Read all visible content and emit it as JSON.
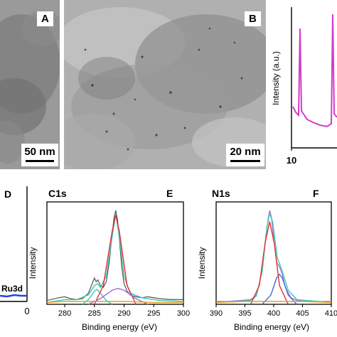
{
  "panel_a": {
    "label": "A",
    "scale_text": "50 nm"
  },
  "panel_b": {
    "label": "B",
    "scale_text": "20 nm"
  },
  "panel_c_partial": {
    "ylabel": "Intensity (a.u.)",
    "xtick_first": "10"
  },
  "panel_d_partial": {
    "label": "D",
    "annotation": "Ru3d",
    "xtick_last": "0"
  },
  "colors": {
    "tem_background": "#9a9a9a",
    "magenta_trace": "#d23cc8",
    "teal_fit": "#3cc8b4",
    "red_peak": "#e03030",
    "violet_peak": "#9b6ad8",
    "blue_trace": "#2244dd"
  },
  "chart_data": [
    {
      "type": "line",
      "panel": "E",
      "title": "C1s",
      "xlabel": "Binding energy (eV)",
      "ylabel": "Intensity",
      "xlim": [
        277,
        300
      ],
      "xticks": [
        "280",
        "285",
        "290",
        "295",
        "300"
      ],
      "series": [
        {
          "x": [
            277,
            279,
            280,
            281,
            282,
            283,
            284,
            284.5,
            285,
            285.3,
            285.6,
            286,
            286.5,
            287,
            287.5,
            288,
            288.3,
            288.6,
            288.9,
            289.2,
            289.6,
            290,
            290.5,
            291,
            292,
            293,
            294,
            296,
            298,
            300
          ],
          "values": [
            0.04,
            0.07,
            0.08,
            0.06,
            0.05,
            0.06,
            0.12,
            0.2,
            0.28,
            0.24,
            0.26,
            0.2,
            0.18,
            0.24,
            0.45,
            0.75,
            0.92,
            1.0,
            0.9,
            0.7,
            0.4,
            0.22,
            0.14,
            0.1,
            0.08,
            0.07,
            0.08,
            0.06,
            0.05,
            0.05
          ]
        },
        {
          "x": [
            277,
            280,
            282,
            284,
            285,
            285.5,
            286,
            287,
            288,
            288.6,
            289.2,
            290,
            291,
            293,
            296,
            300
          ],
          "values": [
            0.02,
            0.05,
            0.05,
            0.1,
            0.2,
            0.22,
            0.18,
            0.3,
            0.72,
            0.97,
            0.72,
            0.3,
            0.12,
            0.07,
            0.04,
            0.03
          ]
        },
        {
          "x": [
            283,
            284,
            285,
            285.4,
            286,
            287,
            288
          ],
          "values": [
            0.0,
            0.05,
            0.14,
            0.16,
            0.12,
            0.04,
            0.0
          ]
        },
        {
          "x": [
            285,
            286.5,
            288,
            288.6,
            289.2,
            290.5,
            292
          ],
          "values": [
            0.0,
            0.2,
            0.78,
            0.95,
            0.78,
            0.2,
            0.0
          ]
        },
        {
          "x": [
            284,
            286,
            288,
            289,
            290,
            292,
            294
          ],
          "values": [
            0.0,
            0.06,
            0.15,
            0.17,
            0.15,
            0.06,
            0.0
          ]
        },
        {
          "x": [
            277,
            280,
            285,
            290,
            295,
            300
          ],
          "values": [
            0.02,
            0.03,
            0.03,
            0.03,
            0.02,
            0.02
          ]
        }
      ]
    },
    {
      "type": "line",
      "panel": "F",
      "title": "N1s",
      "xlabel": "Binding energy (eV)",
      "ylabel": "Intensity",
      "xlim": [
        390,
        410
      ],
      "xticks": [
        "390",
        "395",
        "400",
        "405",
        "410"
      ],
      "series": [
        {
          "x": [
            390,
            392,
            394,
            396,
            397,
            398,
            398.5,
            399,
            399.3,
            399.6,
            400,
            400.5,
            401,
            401.5,
            402,
            403,
            404,
            406,
            408,
            410
          ],
          "values": [
            0.03,
            0.03,
            0.04,
            0.05,
            0.1,
            0.35,
            0.65,
            0.9,
            1.0,
            0.93,
            0.7,
            0.45,
            0.4,
            0.32,
            0.18,
            0.07,
            0.04,
            0.03,
            0.03,
            0.03
          ]
        },
        {
          "x": [
            390,
            396,
            397,
            398,
            398.8,
            399.3,
            399.8,
            400.6,
            401.5,
            402.5,
            404,
            410
          ],
          "values": [
            0.02,
            0.04,
            0.09,
            0.35,
            0.82,
            0.97,
            0.88,
            0.5,
            0.35,
            0.15,
            0.05,
            0.02
          ]
        },
        {
          "x": [
            396,
            397.5,
            398.5,
            399.3,
            400.1,
            401,
            402.5
          ],
          "values": [
            0.0,
            0.2,
            0.65,
            0.88,
            0.65,
            0.2,
            0.0
          ]
        },
        {
          "x": [
            398,
            399.5,
            400.5,
            401,
            401.5,
            402.5,
            404
          ],
          "values": [
            0.0,
            0.1,
            0.28,
            0.32,
            0.28,
            0.1,
            0.0
          ]
        },
        {
          "x": [
            390,
            395,
            400,
            405,
            410
          ],
          "values": [
            0.02,
            0.03,
            0.03,
            0.03,
            0.02
          ]
        }
      ]
    }
  ]
}
